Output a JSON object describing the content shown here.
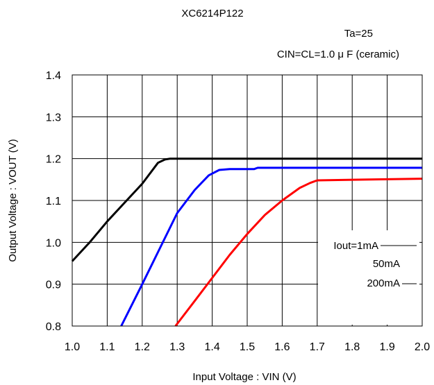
{
  "chart_data": {
    "type": "line",
    "title": "XC6214P122",
    "annotations": [
      "Ta=25",
      "CIN=CL=1.0 μ F  (ceramic)"
    ],
    "xlabel": "Input Voltage : VIN (V)",
    "ylabel": "Output Voltage : VOUT (V)",
    "xlim": [
      1.0,
      2.0
    ],
    "ylim": [
      0.8,
      1.4
    ],
    "xticks": [
      "1.0",
      "1.1",
      "1.2",
      "1.3",
      "1.4",
      "1.5",
      "1.6",
      "1.7",
      "1.8",
      "1.9",
      "2.0"
    ],
    "yticks": [
      "0.8",
      "0.9",
      "1.0",
      "1.1",
      "1.2",
      "1.3",
      "1.4"
    ],
    "grid": true,
    "legend": {
      "placement": "lower-right, inside plot",
      "entries": [
        "Iout=1mA",
        "50mA",
        "200mA"
      ]
    },
    "series": [
      {
        "name": "Iout=1mA",
        "color": "#000000",
        "x": [
          1.0,
          1.05,
          1.1,
          1.15,
          1.2,
          1.245,
          1.265,
          1.28,
          1.3,
          1.5,
          2.0
        ],
        "y": [
          0.955,
          1.0,
          1.05,
          1.095,
          1.14,
          1.19,
          1.198,
          1.2,
          1.2,
          1.2,
          1.2
        ]
      },
      {
        "name": "50mA",
        "color": "#0000ff",
        "x": [
          1.14,
          1.2,
          1.25,
          1.3,
          1.35,
          1.39,
          1.42,
          1.45,
          1.52,
          1.53,
          2.0
        ],
        "y": [
          0.8,
          0.9,
          0.985,
          1.07,
          1.125,
          1.16,
          1.173,
          1.175,
          1.175,
          1.178,
          1.178
        ]
      },
      {
        "name": "200mA",
        "color": "#ff0000",
        "x": [
          1.295,
          1.35,
          1.4,
          1.45,
          1.5,
          1.55,
          1.6,
          1.65,
          1.68,
          1.7,
          1.85,
          2.0
        ],
        "y": [
          0.8,
          0.86,
          0.915,
          0.97,
          1.02,
          1.065,
          1.1,
          1.13,
          1.142,
          1.148,
          1.15,
          1.152
        ]
      }
    ]
  }
}
